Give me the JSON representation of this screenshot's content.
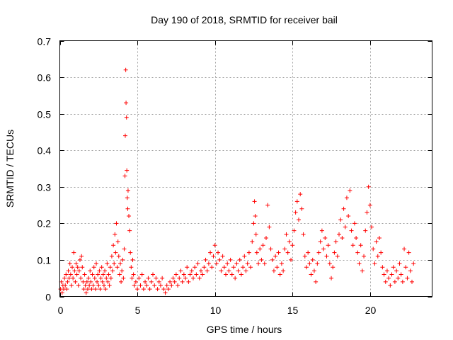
{
  "chart_data": {
    "type": "scatter",
    "title": "Day 190 of 2018, SRMTID for receiver bail",
    "xlabel": "GPS time / hours",
    "ylabel": "SRMTID / TECUs",
    "xlim": [
      0,
      24
    ],
    "ylim": [
      0,
      0.7
    ],
    "xticks": [
      0,
      5,
      10,
      15,
      20
    ],
    "xtick_labels": [
      "0",
      "5",
      "10",
      "15",
      "20"
    ],
    "yticks": [
      0,
      0.1,
      0.2,
      0.3,
      0.4,
      0.5,
      0.6,
      0.7
    ],
    "ytick_labels": [
      "0",
      "0.1",
      "0.2",
      "0.3",
      "0.4",
      "0.5",
      "0.6",
      "0.7"
    ],
    "grid": true,
    "marker": "plus",
    "color": "#ff0000",
    "series": [
      {
        "name": "SRMTID",
        "points": [
          [
            0.05,
            0.02
          ],
          [
            0.1,
            0.04
          ],
          [
            0.15,
            0.01
          ],
          [
            0.2,
            0.03
          ],
          [
            0.25,
            0.02
          ],
          [
            0.3,
            0.05
          ],
          [
            0.35,
            0.03
          ],
          [
            0.4,
            0.06
          ],
          [
            0.45,
            0.02
          ],
          [
            0.5,
            0.04
          ],
          [
            0.55,
            0.07
          ],
          [
            0.6,
            0.05
          ],
          [
            0.65,
            0.09
          ],
          [
            0.7,
            0.06
          ],
          [
            0.75,
            0.03
          ],
          [
            0.8,
            0.08
          ],
          [
            0.85,
            0.05
          ],
          [
            0.9,
            0.12
          ],
          [
            0.95,
            0.07
          ],
          [
            1.0,
            0.04
          ],
          [
            1.05,
            0.09
          ],
          [
            1.1,
            0.06
          ],
          [
            1.15,
            0.08
          ],
          [
            1.2,
            0.03
          ],
          [
            1.25,
            0.07
          ],
          [
            1.3,
            0.1
          ],
          [
            1.35,
            0.05
          ],
          [
            1.4,
            0.11
          ],
          [
            1.45,
            0.08
          ],
          [
            1.5,
            0.04
          ],
          [
            1.55,
            0.02
          ],
          [
            1.6,
            0.06
          ],
          [
            1.65,
            0.03
          ],
          [
            1.7,
            0.01
          ],
          [
            1.75,
            0.04
          ],
          [
            1.8,
            0.02
          ],
          [
            1.85,
            0.05
          ],
          [
            1.9,
            0.03
          ],
          [
            1.95,
            0.07
          ],
          [
            2.0,
            0.04
          ],
          [
            2.05,
            0.02
          ],
          [
            2.1,
            0.06
          ],
          [
            2.15,
            0.03
          ],
          [
            2.2,
            0.08
          ],
          [
            2.25,
            0.05
          ],
          [
            2.3,
            0.02
          ],
          [
            2.35,
            0.09
          ],
          [
            2.4,
            0.04
          ],
          [
            2.45,
            0.06
          ],
          [
            2.5,
            0.03
          ],
          [
            2.55,
            0.07
          ],
          [
            2.6,
            0.02
          ],
          [
            2.65,
            0.05
          ],
          [
            2.7,
            0.08
          ],
          [
            2.75,
            0.04
          ],
          [
            2.8,
            0.06
          ],
          [
            2.85,
            0.03
          ],
          [
            2.9,
            0.07
          ],
          [
            2.95,
            0.02
          ],
          [
            3.0,
            0.05
          ],
          [
            3.05,
            0.09
          ],
          [
            3.1,
            0.04
          ],
          [
            3.15,
            0.06
          ],
          [
            3.2,
            0.03
          ],
          [
            3.25,
            0.08
          ],
          [
            3.3,
            0.05
          ],
          [
            3.35,
            0.11
          ],
          [
            3.4,
            0.07
          ],
          [
            3.45,
            0.14
          ],
          [
            3.5,
            0.09
          ],
          [
            3.55,
            0.17
          ],
          [
            3.6,
            0.12
          ],
          [
            3.65,
            0.2
          ],
          [
            3.7,
            0.08
          ],
          [
            3.75,
            0.15
          ],
          [
            3.8,
            0.11
          ],
          [
            3.85,
            0.06
          ],
          [
            3.9,
            0.09
          ],
          [
            3.95,
            0.04
          ],
          [
            4.0,
            0.07
          ],
          [
            4.05,
            0.1
          ],
          [
            4.1,
            0.05
          ],
          [
            4.15,
            0.13
          ],
          [
            4.2,
            0.33
          ],
          [
            4.22,
            0.44
          ],
          [
            4.25,
            0.62
          ],
          [
            4.27,
            0.53
          ],
          [
            4.3,
            0.49
          ],
          [
            4.32,
            0.345
          ],
          [
            4.35,
            0.27
          ],
          [
            4.38,
            0.24
          ],
          [
            4.4,
            0.29
          ],
          [
            4.45,
            0.22
          ],
          [
            4.5,
            0.18
          ],
          [
            4.55,
            0.12
          ],
          [
            4.6,
            0.08
          ],
          [
            4.65,
            0.05
          ],
          [
            4.7,
            0.1
          ],
          [
            4.75,
            0.06
          ],
          [
            4.8,
            0.03
          ],
          [
            4.9,
            0.04
          ],
          [
            5.0,
            0.02
          ],
          [
            5.1,
            0.05
          ],
          [
            5.2,
            0.03
          ],
          [
            5.3,
            0.06
          ],
          [
            5.4,
            0.02
          ],
          [
            5.5,
            0.04
          ],
          [
            5.6,
            0.03
          ],
          [
            5.7,
            0.05
          ],
          [
            5.8,
            0.02
          ],
          [
            5.9,
            0.04
          ],
          [
            6.0,
            0.06
          ],
          [
            6.1,
            0.03
          ],
          [
            6.2,
            0.05
          ],
          [
            6.3,
            0.02
          ],
          [
            6.4,
            0.04
          ],
          [
            6.5,
            0.03
          ],
          [
            6.6,
            0.05
          ],
          [
            6.7,
            0.02
          ],
          [
            6.8,
            0.01
          ],
          [
            6.9,
            0.03
          ],
          [
            7.0,
            0.02
          ],
          [
            7.1,
            0.04
          ],
          [
            7.2,
            0.03
          ],
          [
            7.3,
            0.05
          ],
          [
            7.4,
            0.04
          ],
          [
            7.5,
            0.06
          ],
          [
            7.6,
            0.03
          ],
          [
            7.7,
            0.05
          ],
          [
            7.8,
            0.07
          ],
          [
            7.9,
            0.04
          ],
          [
            8.0,
            0.06
          ],
          [
            8.1,
            0.05
          ],
          [
            8.2,
            0.08
          ],
          [
            8.3,
            0.04
          ],
          [
            8.4,
            0.06
          ],
          [
            8.5,
            0.07
          ],
          [
            8.6,
            0.05
          ],
          [
            8.7,
            0.08
          ],
          [
            8.8,
            0.06
          ],
          [
            8.9,
            0.09
          ],
          [
            9.0,
            0.05
          ],
          [
            9.1,
            0.07
          ],
          [
            9.2,
            0.06
          ],
          [
            9.3,
            0.08
          ],
          [
            9.4,
            0.1
          ],
          [
            9.5,
            0.07
          ],
          [
            9.6,
            0.09
          ],
          [
            9.7,
            0.12
          ],
          [
            9.8,
            0.08
          ],
          [
            9.9,
            0.11
          ],
          [
            10.0,
            0.14
          ],
          [
            10.1,
            0.09
          ],
          [
            10.2,
            0.12
          ],
          [
            10.3,
            0.1
          ],
          [
            10.4,
            0.07
          ],
          [
            10.5,
            0.11
          ],
          [
            10.6,
            0.08
          ],
          [
            10.7,
            0.06
          ],
          [
            10.8,
            0.09
          ],
          [
            10.9,
            0.07
          ],
          [
            11.0,
            0.1
          ],
          [
            11.1,
            0.06
          ],
          [
            11.2,
            0.08
          ],
          [
            11.3,
            0.05
          ],
          [
            11.4,
            0.09
          ],
          [
            11.5,
            0.07
          ],
          [
            11.6,
            0.1
          ],
          [
            11.7,
            0.06
          ],
          [
            11.8,
            0.08
          ],
          [
            11.9,
            0.11
          ],
          [
            12.0,
            0.07
          ],
          [
            12.1,
            0.09
          ],
          [
            12.2,
            0.12
          ],
          [
            12.3,
            0.08
          ],
          [
            12.4,
            0.15
          ],
          [
            12.5,
            0.2
          ],
          [
            12.55,
            0.26
          ],
          [
            12.6,
            0.22
          ],
          [
            12.65,
            0.17
          ],
          [
            12.7,
            0.12
          ],
          [
            12.8,
            0.09
          ],
          [
            12.9,
            0.13
          ],
          [
            13.0,
            0.1
          ],
          [
            13.1,
            0.14
          ],
          [
            13.2,
            0.09
          ],
          [
            13.3,
            0.16
          ],
          [
            13.4,
            0.25
          ],
          [
            13.5,
            0.19
          ],
          [
            13.6,
            0.13
          ],
          [
            13.7,
            0.1
          ],
          [
            13.8,
            0.07
          ],
          [
            13.9,
            0.11
          ],
          [
            14.0,
            0.08
          ],
          [
            14.1,
            0.12
          ],
          [
            14.2,
            0.06
          ],
          [
            14.3,
            0.09
          ],
          [
            14.4,
            0.07
          ],
          [
            14.5,
            0.13
          ],
          [
            14.6,
            0.17
          ],
          [
            14.7,
            0.12
          ],
          [
            14.8,
            0.15
          ],
          [
            14.9,
            0.1
          ],
          [
            15.0,
            0.14
          ],
          [
            15.1,
            0.18
          ],
          [
            15.2,
            0.23
          ],
          [
            15.3,
            0.26
          ],
          [
            15.4,
            0.21
          ],
          [
            15.5,
            0.28
          ],
          [
            15.6,
            0.24
          ],
          [
            15.7,
            0.17
          ],
          [
            15.8,
            0.11
          ],
          [
            15.9,
            0.08
          ],
          [
            16.0,
            0.12
          ],
          [
            16.1,
            0.09
          ],
          [
            16.2,
            0.06
          ],
          [
            16.3,
            0.1
          ],
          [
            16.4,
            0.07
          ],
          [
            16.5,
            0.04
          ],
          [
            16.6,
            0.09
          ],
          [
            16.7,
            0.12
          ],
          [
            16.8,
            0.15
          ],
          [
            16.9,
            0.18
          ],
          [
            17.0,
            0.13
          ],
          [
            17.1,
            0.16
          ],
          [
            17.2,
            0.11
          ],
          [
            17.3,
            0.14
          ],
          [
            17.4,
            0.09
          ],
          [
            17.5,
            0.05
          ],
          [
            17.6,
            0.08
          ],
          [
            17.7,
            0.12
          ],
          [
            17.8,
            0.15
          ],
          [
            17.9,
            0.11
          ],
          [
            18.0,
            0.17
          ],
          [
            18.1,
            0.21
          ],
          [
            18.2,
            0.16
          ],
          [
            18.3,
            0.24
          ],
          [
            18.4,
            0.19
          ],
          [
            18.5,
            0.27
          ],
          [
            18.6,
            0.22
          ],
          [
            18.7,
            0.29
          ],
          [
            18.8,
            0.18
          ],
          [
            18.9,
            0.14
          ],
          [
            19.0,
            0.2
          ],
          [
            19.1,
            0.16
          ],
          [
            19.2,
            0.12
          ],
          [
            19.3,
            0.09
          ],
          [
            19.4,
            0.14
          ],
          [
            19.5,
            0.07
          ],
          [
            19.6,
            0.11
          ],
          [
            19.7,
            0.18
          ],
          [
            19.8,
            0.23
          ],
          [
            19.9,
            0.3
          ],
          [
            20.0,
            0.25
          ],
          [
            20.1,
            0.19
          ],
          [
            20.2,
            0.13
          ],
          [
            20.3,
            0.09
          ],
          [
            20.4,
            0.15
          ],
          [
            20.5,
            0.11
          ],
          [
            20.6,
            0.16
          ],
          [
            20.7,
            0.12
          ],
          [
            20.8,
            0.08
          ],
          [
            20.9,
            0.06
          ],
          [
            21.0,
            0.04
          ],
          [
            21.1,
            0.07
          ],
          [
            21.2,
            0.05
          ],
          [
            21.3,
            0.03
          ],
          [
            21.4,
            0.06
          ],
          [
            21.5,
            0.08
          ],
          [
            21.6,
            0.04
          ],
          [
            21.7,
            0.07
          ],
          [
            21.8,
            0.05
          ],
          [
            21.9,
            0.09
          ],
          [
            22.0,
            0.06
          ],
          [
            22.1,
            0.04
          ],
          [
            22.2,
            0.13
          ],
          [
            22.3,
            0.08
          ],
          [
            22.4,
            0.05
          ],
          [
            22.5,
            0.12
          ],
          [
            22.6,
            0.07
          ],
          [
            22.7,
            0.04
          ],
          [
            22.8,
            0.09
          ]
        ]
      }
    ]
  }
}
